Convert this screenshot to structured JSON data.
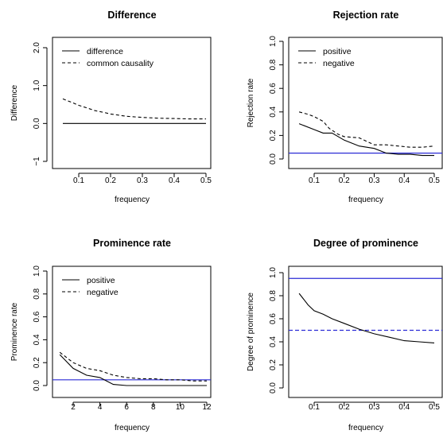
{
  "chart_data": [
    {
      "type": "line",
      "title": "Difference",
      "xlabel": "frequency",
      "ylabel": "Difference",
      "xlim": [
        0.05,
        0.5
      ],
      "ylim": [
        -1,
        2
      ],
      "xticks": [
        "0.1",
        "0.2",
        "0.3",
        "0.4",
        "0.5"
      ],
      "yticks": [
        "−1",
        "0.0",
        "1.0",
        "2.0"
      ],
      "legend": {
        "position": "top-left"
      },
      "series": [
        {
          "name": "difference",
          "style": "solid",
          "color": "#000000",
          "x": [
            0.05,
            0.5
          ],
          "y": [
            0.0,
            0.0
          ]
        },
        {
          "name": "common causality",
          "style": "dashed",
          "color": "#000000",
          "x": [
            0.05,
            0.08,
            0.1,
            0.13,
            0.15,
            0.18,
            0.2,
            0.25,
            0.3,
            0.35,
            0.4,
            0.45,
            0.5
          ],
          "y": [
            0.65,
            0.55,
            0.48,
            0.4,
            0.34,
            0.29,
            0.25,
            0.19,
            0.16,
            0.14,
            0.13,
            0.12,
            0.12
          ]
        }
      ],
      "hlines": []
    },
    {
      "type": "line",
      "title": "Rejection rate",
      "xlabel": "frequency",
      "ylabel": "Rejection rate",
      "xlim": [
        0.05,
        0.5
      ],
      "ylim": [
        0,
        1
      ],
      "xticks": [
        "0.1",
        "0.2",
        "0.3",
        "0.4",
        "0.5"
      ],
      "yticks": [
        "0.0",
        "0.2",
        "0.4",
        "0.6",
        "0.8",
        "1.0"
      ],
      "legend": {
        "position": "top-left"
      },
      "series": [
        {
          "name": "positive",
          "style": "solid",
          "color": "#000000",
          "x": [
            0.05,
            0.1,
            0.13,
            0.16,
            0.2,
            0.25,
            0.3,
            0.34,
            0.38,
            0.42,
            0.46,
            0.5
          ],
          "y": [
            0.3,
            0.25,
            0.22,
            0.22,
            0.16,
            0.11,
            0.09,
            0.05,
            0.04,
            0.04,
            0.03,
            0.03
          ]
        },
        {
          "name": "negative",
          "style": "dashed",
          "color": "#000000",
          "x": [
            0.05,
            0.08,
            0.1,
            0.13,
            0.15,
            0.18,
            0.2,
            0.25,
            0.3,
            0.34,
            0.38,
            0.42,
            0.46,
            0.5
          ],
          "y": [
            0.4,
            0.38,
            0.36,
            0.32,
            0.26,
            0.21,
            0.19,
            0.18,
            0.12,
            0.12,
            0.11,
            0.1,
            0.1,
            0.11
          ]
        }
      ],
      "hlines": [
        {
          "y": 0.05,
          "color": "#2b2bd6",
          "style": "solid"
        }
      ]
    },
    {
      "type": "line",
      "title": "Prominence rate",
      "xlabel": "frequency",
      "ylabel": "Prominence rate",
      "xlim": [
        1,
        12
      ],
      "ylim": [
        0,
        1
      ],
      "xticks": [
        "2",
        "4",
        "6",
        "8",
        "10",
        "12"
      ],
      "yticks": [
        "0.0",
        "0.2",
        "0.4",
        "0.6",
        "0.8",
        "1.0"
      ],
      "legend": {
        "position": "top-left"
      },
      "series": [
        {
          "name": "positive",
          "style": "solid",
          "color": "#000000",
          "x": [
            1,
            2,
            3,
            4,
            4.5,
            5,
            6,
            7,
            8,
            9,
            10,
            11,
            12
          ],
          "y": [
            0.27,
            0.15,
            0.09,
            0.07,
            0.04,
            0.01,
            0.0,
            0.0,
            0.0,
            0.0,
            0.0,
            0.0,
            0.0
          ]
        },
        {
          "name": "negative",
          "style": "dashed",
          "color": "#000000",
          "x": [
            1,
            2,
            3,
            4,
            5,
            6,
            7,
            8,
            9,
            10,
            11,
            12
          ],
          "y": [
            0.29,
            0.2,
            0.15,
            0.13,
            0.09,
            0.07,
            0.06,
            0.06,
            0.05,
            0.05,
            0.04,
            0.04
          ]
        }
      ],
      "hlines": [
        {
          "y": 0.05,
          "color": "#2b2bd6",
          "style": "solid"
        }
      ]
    },
    {
      "type": "line",
      "title": "Degree of prominence",
      "xlabel": "frequency",
      "ylabel": "Degree of prominence",
      "xlim": [
        0.05,
        0.5
      ],
      "ylim": [
        0,
        1
      ],
      "xticks": [
        "0.1",
        "0.2",
        "0.3",
        "0.4",
        "0.5"
      ],
      "yticks": [
        "0.0",
        "0.2",
        "0.4",
        "0.6",
        "0.8",
        "1.0"
      ],
      "legend": {
        "position": "none"
      },
      "series": [
        {
          "style": "solid",
          "color": "#000000",
          "x": [
            0.05,
            0.08,
            0.1,
            0.13,
            0.16,
            0.2,
            0.25,
            0.3,
            0.35,
            0.4,
            0.45,
            0.5
          ],
          "y": [
            0.82,
            0.72,
            0.67,
            0.64,
            0.6,
            0.56,
            0.51,
            0.47,
            0.44,
            0.41,
            0.4,
            0.39
          ]
        }
      ],
      "hlines": [
        {
          "y": 0.95,
          "color": "#2b2bd6",
          "style": "solid"
        },
        {
          "y": 0.5,
          "color": "#2b2bd6",
          "style": "dashed"
        }
      ]
    }
  ]
}
